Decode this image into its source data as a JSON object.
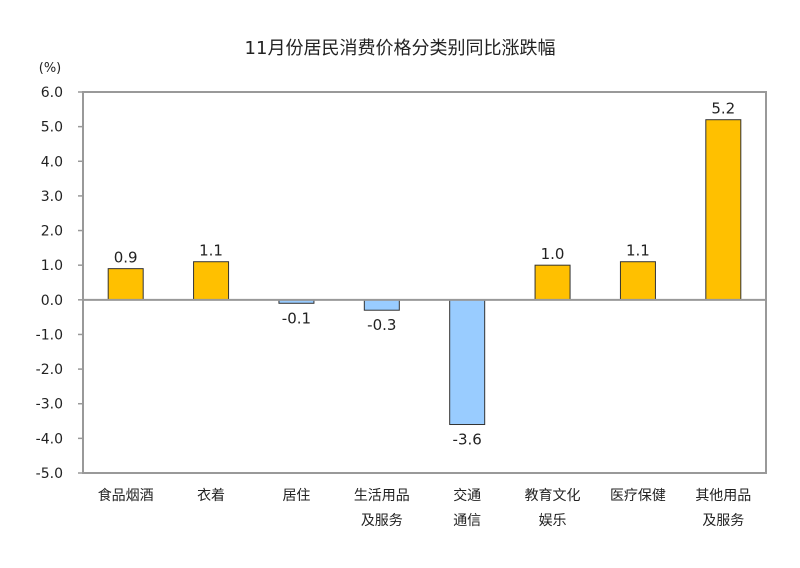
{
  "chart_data": {
    "type": "bar",
    "title": "11月份居民消费价格分类别同比涨跌幅",
    "ylabel": "(%)",
    "xlabel": "",
    "categories": [
      [
        "食品烟酒"
      ],
      [
        "衣着"
      ],
      [
        "居住"
      ],
      [
        "生活用品",
        "及服务"
      ],
      [
        "交通",
        "通信"
      ],
      [
        "教育文化",
        "娱乐"
      ],
      [
        "医疗保健"
      ],
      [
        "其他用品",
        "及服务"
      ]
    ],
    "values": [
      0.9,
      1.1,
      -0.1,
      -0.3,
      -3.6,
      1.0,
      1.1,
      5.2
    ],
    "data_labels": [
      "0.9",
      "1.1",
      "-0.1",
      "-0.3",
      "-3.6",
      "1.0",
      "1.1",
      "5.2"
    ],
    "ylim": [
      -5,
      6
    ],
    "yticks": [
      "6.0",
      "5.0",
      "4.0",
      "3.0",
      "2.0",
      "1.0",
      "0.0",
      "-1.0",
      "-2.0",
      "-3.0",
      "-4.0",
      "-5.0"
    ],
    "grid": false,
    "legend": "none",
    "colors": {
      "positive": "#FFC000",
      "negative": "#99CCFF",
      "outline": "#333333",
      "frame": "#999999"
    }
  }
}
